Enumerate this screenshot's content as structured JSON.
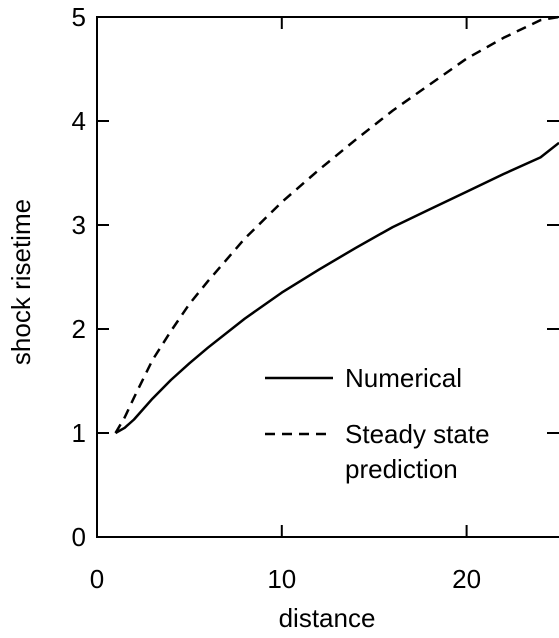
{
  "chart_data": {
    "type": "line",
    "xlabel": "distance",
    "ylabel": "shock risetime",
    "xlim": [
      0,
      25
    ],
    "ylim": [
      0,
      5
    ],
    "x_ticks": [
      0,
      10,
      20
    ],
    "x_tick_labels": [
      "0",
      "10",
      "20"
    ],
    "y_ticks": [
      0,
      1,
      2,
      3,
      4,
      5
    ],
    "y_tick_labels": [
      "0",
      "1",
      "2",
      "3",
      "4",
      "5"
    ],
    "grid": false,
    "legend_position": "bottom-right",
    "series": [
      {
        "name": "Numerical",
        "style": "solid",
        "color": "#000000",
        "x": [
          1.0,
          1.5,
          2,
          3,
          4,
          5,
          6,
          8,
          10,
          12,
          14,
          16,
          18,
          20,
          22,
          24,
          25
        ],
        "y": [
          1.0,
          1.05,
          1.13,
          1.33,
          1.51,
          1.67,
          1.82,
          2.1,
          2.35,
          2.57,
          2.78,
          2.98,
          3.15,
          3.32,
          3.49,
          3.65,
          3.79
        ]
      },
      {
        "name": "Steady state prediction",
        "legend_lines": [
          "Steady state",
          "prediction"
        ],
        "style": "dashed",
        "color": "#000000",
        "x": [
          1.0,
          1.5,
          2,
          3,
          4,
          5,
          6,
          8,
          10,
          12,
          14,
          16,
          18,
          20,
          22,
          24,
          25
        ],
        "y": [
          1.0,
          1.15,
          1.34,
          1.7,
          1.98,
          2.24,
          2.46,
          2.87,
          3.22,
          3.53,
          3.82,
          4.1,
          4.35,
          4.6,
          4.8,
          4.97,
          5.0
        ]
      }
    ]
  }
}
